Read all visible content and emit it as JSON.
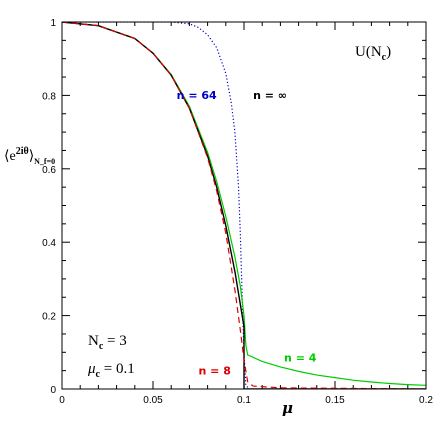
{
  "chart_data": {
    "type": "line",
    "xlabel": "μ",
    "ylabel": "⟨e^{2iθ}⟩_{N_f=0}",
    "xlim": [
      0,
      0.2
    ],
    "ylim": [
      0,
      1
    ],
    "x_ticks": [
      "0",
      "0.05",
      "0.1",
      "0.15",
      "0.2"
    ],
    "y_ticks": [
      "0",
      "0.2",
      "0.4",
      "0.6",
      "0.8",
      "1"
    ],
    "group_label": "U(N_c)",
    "params": [
      {
        "label": "N_c",
        "value": "3"
      },
      {
        "label": "μ_c",
        "value": "0.1"
      }
    ],
    "series": [
      {
        "name": "n = ∞",
        "color": "#000000",
        "style": "solid",
        "points": [
          [
            0,
            1
          ],
          [
            0.02,
            0.99
          ],
          [
            0.04,
            0.955
          ],
          [
            0.05,
            0.915
          ],
          [
            0.06,
            0.855
          ],
          [
            0.07,
            0.765
          ],
          [
            0.08,
            0.635
          ],
          [
            0.085,
            0.55
          ],
          [
            0.09,
            0.445
          ],
          [
            0.095,
            0.32
          ],
          [
            0.1,
            0.17
          ],
          [
            0.1,
            0.0
          ],
          [
            0.2,
            0.0
          ]
        ]
      },
      {
        "name": "n = 64",
        "color": "#0000cc",
        "style": "dotted",
        "points": [
          [
            0,
            1
          ],
          [
            0.06,
            1.0
          ],
          [
            0.07,
            0.995
          ],
          [
            0.075,
            0.985
          ],
          [
            0.08,
            0.965
          ],
          [
            0.085,
            0.93
          ],
          [
            0.09,
            0.86
          ],
          [
            0.093,
            0.78
          ],
          [
            0.095,
            0.7
          ],
          [
            0.097,
            0.55
          ],
          [
            0.098,
            0.42
          ],
          [
            0.099,
            0.25
          ],
          [
            0.1,
            0.1
          ],
          [
            0.101,
            0.01
          ],
          [
            0.103,
            0.0
          ]
        ]
      },
      {
        "name": "n = 8",
        "color": "#dd0000",
        "style": "dashed",
        "points": [
          [
            0,
            1
          ],
          [
            0.02,
            0.99
          ],
          [
            0.04,
            0.955
          ],
          [
            0.05,
            0.915
          ],
          [
            0.06,
            0.855
          ],
          [
            0.07,
            0.765
          ],
          [
            0.08,
            0.63
          ],
          [
            0.085,
            0.54
          ],
          [
            0.09,
            0.425
          ],
          [
            0.095,
            0.27
          ],
          [
            0.098,
            0.16
          ],
          [
            0.1,
            0.08
          ],
          [
            0.102,
            0.02
          ],
          [
            0.105,
            0.008
          ],
          [
            0.12,
            0.003
          ],
          [
            0.2,
            0.0
          ]
        ]
      },
      {
        "name": "n = 4",
        "color": "#00cc00",
        "style": "solid",
        "points": [
          [
            0,
            1
          ],
          [
            0.02,
            0.99
          ],
          [
            0.04,
            0.955
          ],
          [
            0.05,
            0.915
          ],
          [
            0.06,
            0.857
          ],
          [
            0.07,
            0.77
          ],
          [
            0.08,
            0.645
          ],
          [
            0.085,
            0.565
          ],
          [
            0.09,
            0.47
          ],
          [
            0.095,
            0.36
          ],
          [
            0.098,
            0.28
          ],
          [
            0.1,
            0.2
          ],
          [
            0.101,
            0.12
          ],
          [
            0.102,
            0.093
          ],
          [
            0.11,
            0.075
          ],
          [
            0.12,
            0.06
          ],
          [
            0.13,
            0.048
          ],
          [
            0.14,
            0.038
          ],
          [
            0.15,
            0.031
          ],
          [
            0.16,
            0.024
          ],
          [
            0.17,
            0.019
          ],
          [
            0.18,
            0.015
          ],
          [
            0.19,
            0.012
          ],
          [
            0.2,
            0.01
          ]
        ]
      }
    ],
    "annotations": [
      {
        "text": "n = 64",
        "color": "#0000cc",
        "at": [
          0.063,
          0.79
        ]
      },
      {
        "text": "n = ∞",
        "color": "#000000",
        "at": [
          0.105,
          0.79
        ]
      },
      {
        "text": "n = 4",
        "color": "#00cc00",
        "at": [
          0.122,
          0.075
        ]
      },
      {
        "text": "n = 8",
        "color": "#dd0000",
        "at": [
          0.075,
          0.04
        ]
      }
    ]
  }
}
